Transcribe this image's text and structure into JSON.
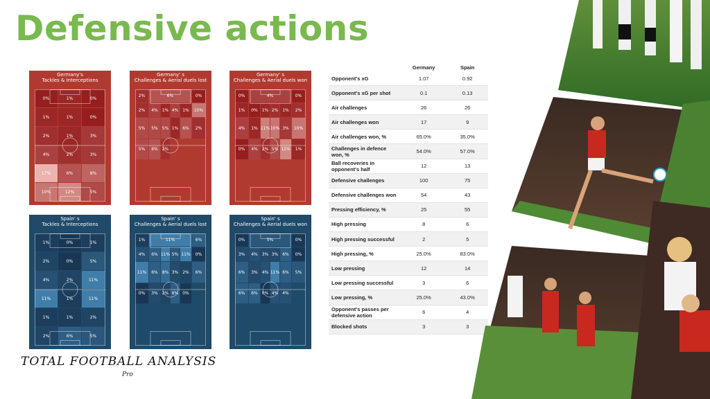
{
  "page_title": "Defensive actions",
  "brand": {
    "logo_text": "TOTAL FOOTBALL ANALYSIS",
    "logo_sub": "Pro"
  },
  "colors": {
    "title": "#79b94e",
    "germany": "#b13a30",
    "spain": "#1f4a69"
  },
  "pitch_maps": [
    {
      "team": "Germany",
      "title_line1": "Germany's",
      "title_line2": "Tackles & Interceptions",
      "layout": "3col",
      "cells": [
        "0%",
        "1%",
        "0%",
        "1%",
        "1%",
        "0%",
        "2%",
        "1%",
        "3%",
        "4%",
        "2%",
        "3%",
        "17%",
        "6%",
        "8%",
        "10%",
        "12%",
        "5%"
      ]
    },
    {
      "team": "Germany",
      "title_line1": "Germany' s",
      "title_line2": "Challenges & Aerial duels lost",
      "layout": "5col",
      "cells": [
        "2%",
        "6%",
        "0%",
        "2%",
        "4%",
        "1%",
        "4%",
        "1%",
        "10%",
        "5%",
        "5%",
        "5%",
        "1%",
        "6%",
        "2%",
        "5%",
        "6%",
        "2%"
      ]
    },
    {
      "team": "Germany",
      "title_line1": "Germany' s",
      "title_line2": "Challenges & Aerial duels won",
      "layout": "5col",
      "cells": [
        "0%",
        "4%",
        "0%",
        "1%",
        "0%",
        "1%",
        "2%",
        "1%",
        "2%",
        "4%",
        "1%",
        "11%",
        "10%",
        "3%",
        "10%",
        "0%",
        "4%",
        "2%",
        "5%",
        "12%",
        "1%"
      ]
    },
    {
      "team": "Spain",
      "title_line1": "Spain' s",
      "title_line2": "Tackles & Interceptions",
      "layout": "3col",
      "cells": [
        "1%",
        "0%",
        "1%",
        "2%",
        "0%",
        "5%",
        "4%",
        "2%",
        "11%",
        "11%",
        "1%",
        "11%",
        "1%",
        "1%",
        "2%",
        "2%",
        "6%",
        "5%"
      ]
    },
    {
      "team": "Spain",
      "title_line1": "Spain' s",
      "title_line2": "Challenges & Aerial duels lost",
      "layout": "5col",
      "cells": [
        "1%",
        "11%",
        "6%",
        "4%",
        "6%",
        "11%",
        "5%",
        "11%",
        "0%",
        "11%",
        "6%",
        "8%",
        "3%",
        "2%",
        "6%",
        "0%",
        "3%",
        "2%",
        "6%",
        "0%"
      ]
    },
    {
      "team": "Spain",
      "title_line1": "Spain' s",
      "title_line2": "Challenges & Aerial duels won",
      "layout": "5col",
      "cells": [
        "0%",
        "5%",
        "0%",
        "3%",
        "4%",
        "3%",
        "3%",
        "6%",
        "0%",
        "6%",
        "3%",
        "4%",
        "11%",
        "6%",
        "5%",
        "6%",
        "6%",
        "0%",
        "4%",
        "4%"
      ]
    }
  ],
  "chart_data": {
    "type": "table",
    "columns": [
      "",
      "Germany",
      "Spain"
    ],
    "rows": [
      {
        "label": "Opponent's xG",
        "germany": "1.07",
        "spain": "0.92"
      },
      {
        "label": "Opponent's xG per shot",
        "germany": "0.1",
        "spain": "0.13"
      },
      {
        "label": "Air challenges",
        "germany": "26",
        "spain": "26"
      },
      {
        "label": "Air challenges won",
        "germany": "17",
        "spain": "9"
      },
      {
        "label": "Air challenges won, %",
        "germany": "65.0%",
        "spain": "35.0%"
      },
      {
        "label": "Challenges in defence won, %",
        "germany": "54.0%",
        "spain": "57.0%"
      },
      {
        "label": "Ball recoveries in opponent's half",
        "germany": "12",
        "spain": "13"
      },
      {
        "label": "Defensive challenges",
        "germany": "100",
        "spain": "75"
      },
      {
        "label": "Defensive challenges won",
        "germany": "54",
        "spain": "43"
      },
      {
        "label": "Pressing efficiency, %",
        "germany": "25",
        "spain": "55"
      },
      {
        "label": "High pressing",
        "germany": "8",
        "spain": "6"
      },
      {
        "label": "High pressing successful",
        "germany": "2",
        "spain": "5"
      },
      {
        "label": "High pressing, %",
        "germany": "25.0%",
        "spain": "83.0%"
      },
      {
        "label": "Low pressing",
        "germany": "12",
        "spain": "14"
      },
      {
        "label": "Low pressing successful",
        "germany": "3",
        "spain": "6"
      },
      {
        "label": "Low pressing, %",
        "germany": "25.0%",
        "spain": "43.0%"
      },
      {
        "label": "Opponent's passes per defensive action",
        "germany": "6",
        "spain": "4"
      },
      {
        "label": "Blocked shots",
        "germany": "3",
        "spain": "3"
      }
    ]
  }
}
